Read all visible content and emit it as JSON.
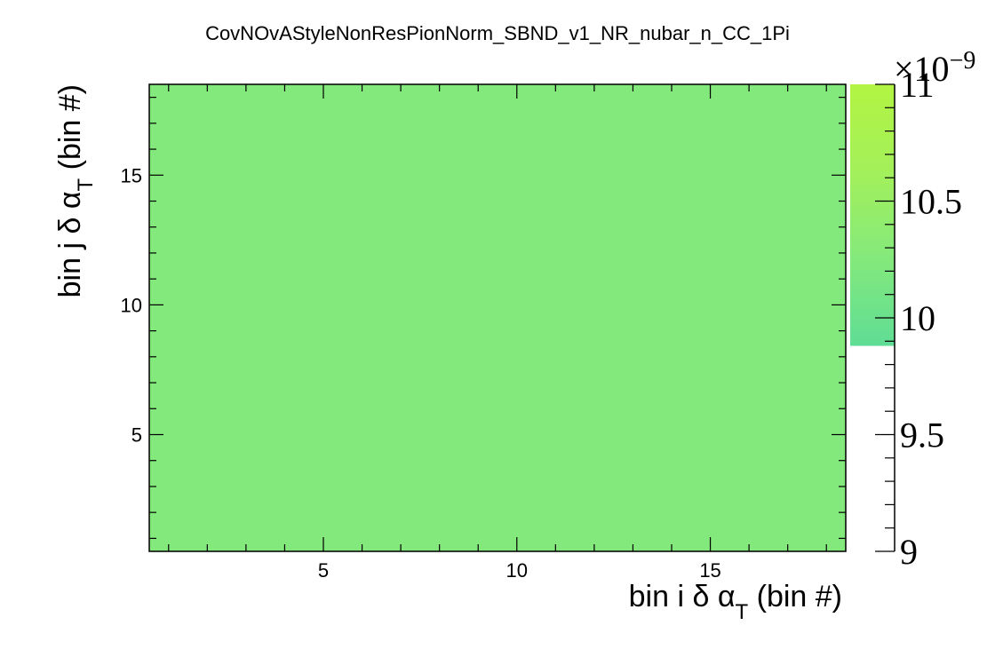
{
  "chart_data": {
    "type": "heatmap",
    "title": "CovNOvAStyleNonResPionNorm_SBND_v1_NR_nubar_n_CC_1Pi",
    "xlabel": {
      "main": "bin i δ α",
      "sub": "T",
      "tail": " (bin #)"
    },
    "ylabel": {
      "main": "bin j δ α",
      "sub": "T",
      "tail": " (bin #)"
    },
    "xlim": [
      0.5,
      18.5
    ],
    "ylim": [
      0.5,
      18.5
    ],
    "x_ticks": [
      "5",
      "10",
      "15"
    ],
    "y_ticks": [
      "5",
      "10",
      "15"
    ],
    "nbins_x": 18,
    "nbins_y": 18,
    "cell_value": 1e-08,
    "cell_color": "#84e97c",
    "zlim": [
      9e-09,
      1.1e-08
    ],
    "z_ticks": [
      "9",
      "9.5",
      "10",
      "10.5",
      "11"
    ],
    "z_exponent": "×10",
    "z_exponent_power": "−9",
    "palette_visible_range": [
      9.88e-09,
      1.1e-08
    ],
    "palette_colors": [
      "#5fdd95",
      "#84e97c",
      "#a3f05a",
      "#b2f442"
    ]
  }
}
